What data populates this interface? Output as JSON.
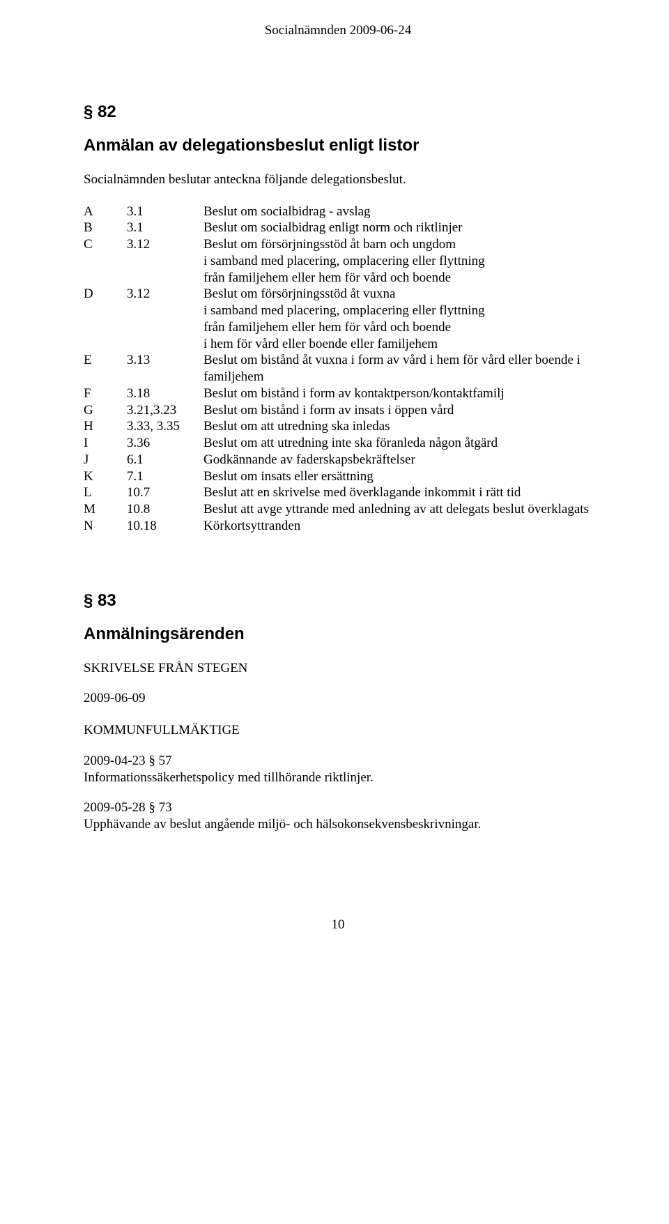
{
  "header": {
    "text": "Socialnämnden 2009-06-24"
  },
  "section82": {
    "num": "§ 82",
    "title": "Anmälan av delegationsbeslut enligt listor",
    "preamble": "Socialnämnden beslutar anteckna följande delegationsbeslut.",
    "items": [
      {
        "letter": "A",
        "code": "3.1",
        "desc": "Beslut om socialbidrag - avslag"
      },
      {
        "letter": "B",
        "code": "3.1",
        "desc": "Beslut om socialbidrag enligt norm och riktlinjer"
      },
      {
        "letter": "C",
        "code": "3.12",
        "desc": "Beslut om försörjningsstöd åt barn och ungdom\ni samband med placering, omplacering eller flyttning\nfrån familjehem eller hem för vård och boende"
      },
      {
        "letter": "D",
        "code": "3.12",
        "desc": "Beslut om försörjningsstöd åt vuxna\ni samband med placering, omplacering eller flyttning\nfrån familjehem eller hem för vård och boende\ni hem för vård eller boende eller familjehem"
      },
      {
        "letter": "E",
        "code": "3.13",
        "desc": "Beslut om bistånd åt vuxna i form av vård i hem för vård eller boende i familjehem"
      },
      {
        "letter": "F",
        "code": "3.18",
        "desc": "Beslut om bistånd i form av kontaktperson/kontaktfamilj"
      },
      {
        "letter": "G",
        "code": "3.21,3.23",
        "desc": "Beslut om bistånd i form av insats i öppen vård"
      },
      {
        "letter": "H",
        "code": "3.33, 3.35",
        "desc": "Beslut om att utredning ska inledas"
      },
      {
        "letter": "I",
        "code": "3.36",
        "desc": "Beslut om att utredning inte ska föranleda någon åtgärd"
      },
      {
        "letter": "J",
        "code": "6.1",
        "desc": "Godkännande av faderskapsbekräftelser"
      },
      {
        "letter": "K",
        "code": "7.1",
        "desc": "Beslut om insats eller ersättning"
      },
      {
        "letter": "L",
        "code": "10.7",
        "desc": "Beslut att en skrivelse med överklagande inkommit i rätt tid"
      },
      {
        "letter": "M",
        "code": "10.8",
        "desc": "Beslut att avge yttrande med anledning av att delegats beslut överklagats"
      },
      {
        "letter": "N",
        "code": "10.18",
        "desc": "Körkortsyttranden"
      }
    ]
  },
  "section83": {
    "num": "§ 83",
    "title": "Anmälningsärenden",
    "stegen": {
      "heading": "SKRIVELSE FRÅN STEGEN",
      "date": "2009-06-09"
    },
    "kommun": {
      "heading": "KOMMUNFULLMÄKTIGE",
      "item1_line1": "2009-04-23  § 57",
      "item1_line2": "Informationssäkerhetspolicy med tillhörande riktlinjer.",
      "item2_line1": "2009-05-28  § 73",
      "item2_line2": "Upphävande av beslut angående miljö- och hälsokonsekvensbeskrivningar."
    }
  },
  "page_number": "10"
}
